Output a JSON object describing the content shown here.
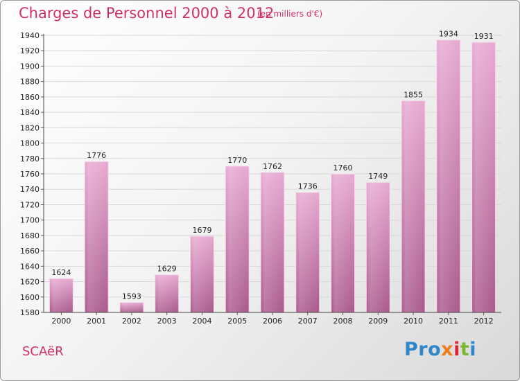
{
  "header": {
    "title": "Charges de Personnel 2000 à 2012",
    "subtitle": "(en milliers d'€)"
  },
  "footer": {
    "town": "SCAëR",
    "logo": [
      "Pro",
      "x",
      "i",
      "t",
      "i"
    ]
  },
  "colors": {
    "title": "#d0306a",
    "bar_top": "#e7a9d1",
    "bar_bottom": "#a9598b",
    "grid": "#d8d8d8"
  },
  "chart_data": {
    "type": "bar",
    "title": "Charges de Personnel 2000 à 2012",
    "subtitle": "(en milliers d'€)",
    "xlabel": "",
    "ylabel": "",
    "categories": [
      "2000",
      "2001",
      "2002",
      "2003",
      "2004",
      "2005",
      "2006",
      "2007",
      "2008",
      "2009",
      "2010",
      "2011",
      "2012"
    ],
    "values": [
      1624,
      1776,
      1593,
      1629,
      1679,
      1770,
      1762,
      1736,
      1760,
      1749,
      1855,
      1934,
      1931
    ],
    "ylim": [
      1580,
      1940
    ],
    "yticks": [
      1580,
      1600,
      1620,
      1640,
      1660,
      1680,
      1700,
      1720,
      1740,
      1760,
      1780,
      1800,
      1820,
      1840,
      1860,
      1880,
      1900,
      1920,
      1940
    ],
    "grid": true,
    "legend": "none"
  }
}
